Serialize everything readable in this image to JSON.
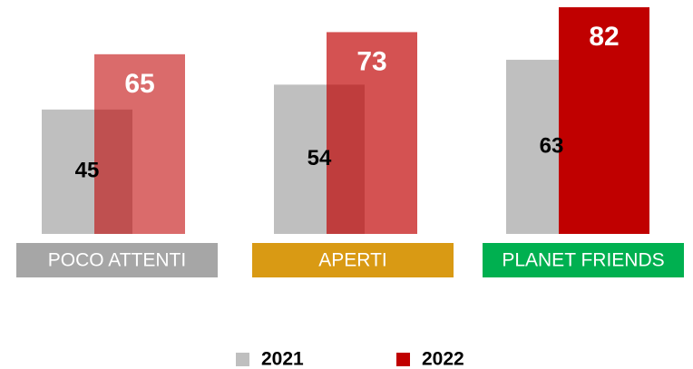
{
  "chart_data": {
    "type": "bar",
    "categories": [
      "POCO ATTENTI",
      "APERTI",
      "PLANET FRIENDS"
    ],
    "category_colors": [
      "#a6a6a6",
      "#d99a14",
      "#00b050"
    ],
    "series": [
      {
        "name": "2021",
        "color": "#bfbfbf",
        "values": [
          45,
          54,
          63
        ]
      },
      {
        "name": "2022",
        "color": "#c00000",
        "opacity": [
          0.58,
          0.68,
          1
        ],
        "values": [
          65,
          73,
          82
        ]
      }
    ]
  }
}
